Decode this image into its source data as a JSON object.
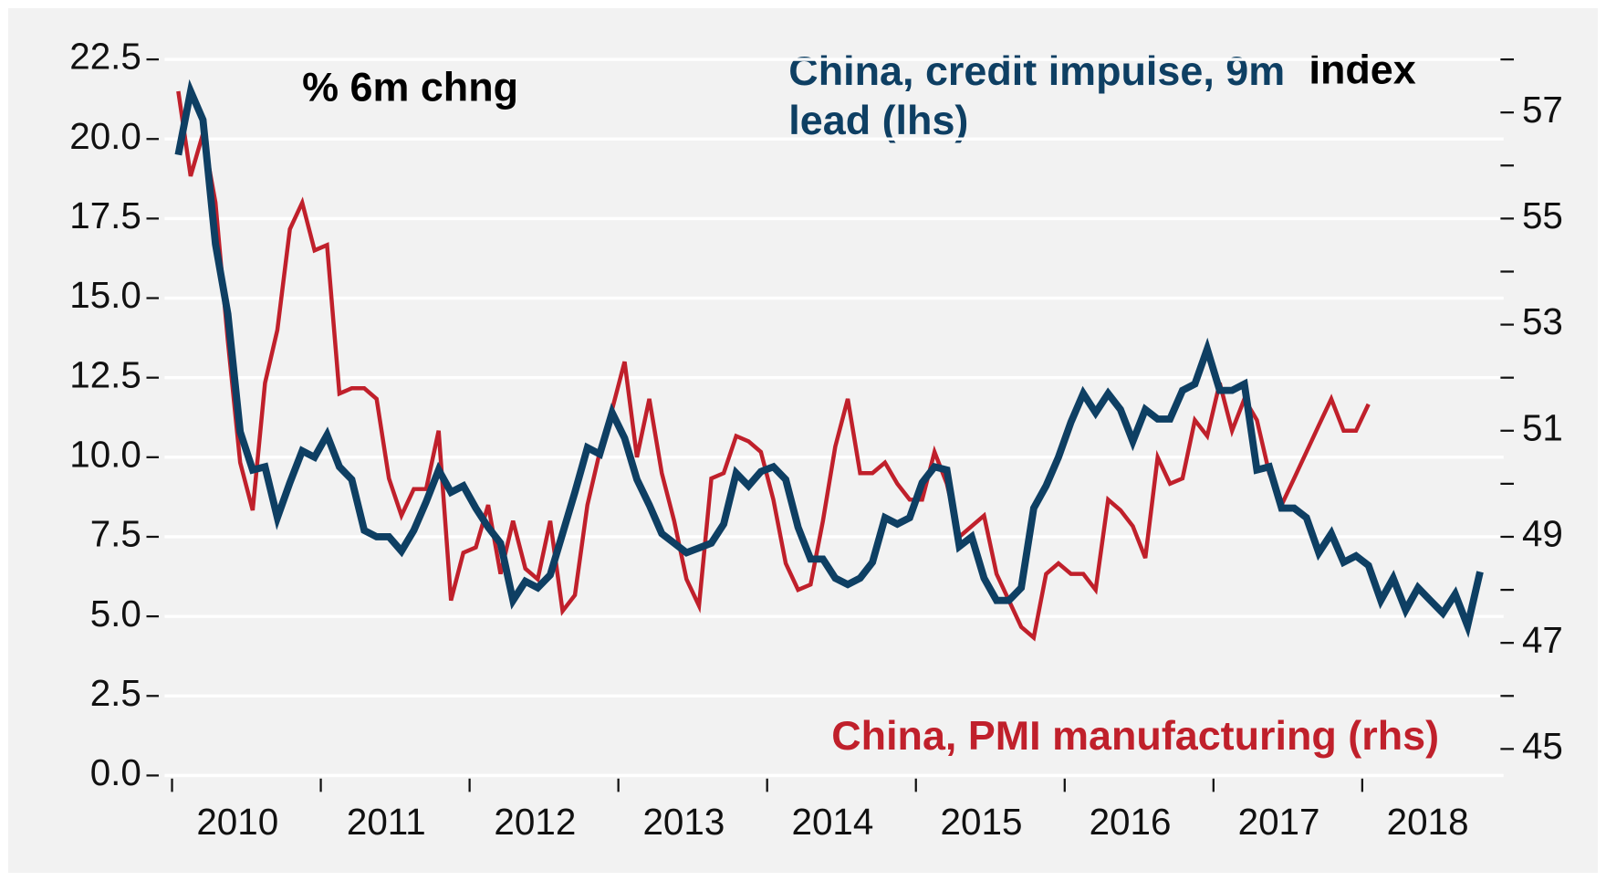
{
  "chart_data": {
    "type": "line",
    "annotations": [
      "% 6m chng",
      "Index"
    ],
    "x": [
      2010.042,
      2010.125,
      2010.208,
      2010.292,
      2010.375,
      2010.458,
      2010.542,
      2010.625,
      2010.708,
      2010.792,
      2010.875,
      2010.958,
      2011.042,
      2011.125,
      2011.208,
      2011.292,
      2011.375,
      2011.458,
      2011.542,
      2011.625,
      2011.708,
      2011.792,
      2011.875,
      2011.958,
      2012.042,
      2012.125,
      2012.208,
      2012.292,
      2012.375,
      2012.458,
      2012.542,
      2012.625,
      2012.708,
      2012.792,
      2012.875,
      2012.958,
      2013.042,
      2013.125,
      2013.208,
      2013.292,
      2013.375,
      2013.458,
      2013.542,
      2013.625,
      2013.708,
      2013.792,
      2013.875,
      2013.958,
      2014.042,
      2014.125,
      2014.208,
      2014.292,
      2014.375,
      2014.458,
      2014.542,
      2014.625,
      2014.708,
      2014.792,
      2014.875,
      2014.958,
      2015.042,
      2015.125,
      2015.208,
      2015.292,
      2015.375,
      2015.458,
      2015.542,
      2015.625,
      2015.708,
      2015.792,
      2015.875,
      2015.958,
      2016.042,
      2016.125,
      2016.208,
      2016.292,
      2016.375,
      2016.458,
      2016.542,
      2016.625,
      2016.708,
      2016.792,
      2016.875,
      2016.958,
      2017.042,
      2017.125,
      2017.208,
      2017.292,
      2017.375,
      2017.458,
      2017.542,
      2017.625,
      2017.708,
      2017.792,
      2017.875,
      2017.958,
      2018.042,
      2018.125,
      2018.208,
      2018.292,
      2018.375,
      2018.458,
      2018.542,
      2018.625,
      2018.708,
      2018.792
    ],
    "series": [
      {
        "name": "China, credit impulse, 9m lead (lhs)",
        "color": "#0e3f63",
        "axis": "y",
        "values": [
          19.5,
          21.5,
          20.6,
          16.7,
          14.5,
          10.8,
          9.6,
          9.7,
          8.1,
          9.2,
          10.2,
          10.0,
          10.7,
          9.7,
          9.3,
          7.7,
          7.5,
          7.5,
          7.05,
          7.7,
          8.6,
          9.6,
          8.9,
          9.1,
          8.4,
          7.8,
          7.3,
          5.5,
          6.1,
          5.9,
          6.3,
          7.6,
          8.9,
          10.3,
          10.1,
          11.4,
          10.6,
          9.3,
          8.5,
          7.6,
          7.3,
          7.0,
          7.15,
          7.3,
          7.9,
          9.5,
          9.1,
          9.55,
          9.7,
          9.3,
          7.8,
          6.8,
          6.8,
          6.2,
          6.0,
          6.2,
          6.7,
          8.1,
          7.9,
          8.1,
          9.2,
          9.7,
          9.6,
          7.2,
          7.5,
          6.2,
          5.5,
          5.5,
          5.9,
          8.4,
          9.1,
          10.0,
          11.1,
          12.0,
          11.4,
          12.0,
          11.5,
          10.5,
          11.5,
          11.2,
          11.2,
          12.1,
          12.3,
          13.4,
          12.1,
          12.1,
          12.3,
          9.6,
          9.7,
          8.4,
          8.4,
          8.1,
          7.0,
          7.6,
          6.7,
          6.9,
          6.6,
          5.5,
          6.2,
          5.2,
          5.9,
          5.5,
          5.1,
          5.7,
          4.7,
          6.4
        ]
      },
      {
        "name": "China, PMI manufacturing (rhs)",
        "color": "#c0202b",
        "axis": "y2",
        "values": [
          57.4,
          55.8,
          56.6,
          55.3,
          52.7,
          50.4,
          49.5,
          51.9,
          52.9,
          54.8,
          55.3,
          54.4,
          54.5,
          51.7,
          51.8,
          51.8,
          51.6,
          50.1,
          49.4,
          49.9,
          49.9,
          51.0,
          47.8,
          48.7,
          48.8,
          49.6,
          48.3,
          49.3,
          48.4,
          48.2,
          49.3,
          47.6,
          47.9,
          49.6,
          50.6,
          51.4,
          52.3,
          50.5,
          51.6,
          50.2,
          49.3,
          48.2,
          47.7,
          50.1,
          50.2,
          50.9,
          50.8,
          50.6,
          49.7,
          48.5,
          48.0,
          48.1,
          49.3,
          50.7,
          51.6,
          50.2,
          50.2,
          50.4,
          50.0,
          49.7,
          49.7,
          50.6,
          50.0,
          49.0,
          49.2,
          49.4,
          48.3,
          47.8,
          47.3,
          47.1,
          48.3,
          48.5,
          48.3,
          48.3,
          48.0,
          49.7,
          49.5,
          49.2,
          48.6,
          50.5,
          50.0,
          50.1,
          51.2,
          50.9,
          51.9,
          51.0,
          51.6,
          51.2,
          50.2,
          49.6,
          50.1,
          50.6,
          51.1,
          51.6,
          51.0,
          51.0,
          51.5,
          null,
          null,
          null,
          null,
          null,
          null,
          null,
          null,
          null
        ]
      }
    ],
    "xlim": [
      2009.95,
      2018.95
    ],
    "xticks": [
      2010,
      2011,
      2012,
      2013,
      2014,
      2015,
      2016,
      2017,
      2018
    ],
    "ylim": [
      0,
      22.5
    ],
    "yticks": [
      {
        "value": 0,
        "label": "0.0"
      },
      {
        "value": 2.5,
        "label": "2.5"
      },
      {
        "value": 5,
        "label": "5.0"
      },
      {
        "value": 7.5,
        "label": "7.5"
      },
      {
        "value": 10,
        "label": "10.0"
      },
      {
        "value": 12.5,
        "label": "12.5"
      },
      {
        "value": 15,
        "label": "15.0"
      },
      {
        "value": 17.5,
        "label": "17.5"
      },
      {
        "value": 20,
        "label": "20.0"
      },
      {
        "value": 22.5,
        "label": "22.5"
      }
    ],
    "y2lim": [
      44.5,
      58
    ],
    "y2ticks": [
      45,
      47,
      49,
      51,
      53,
      55,
      57
    ],
    "y2minor_ticks": [
      46,
      48,
      50,
      52,
      54,
      56,
      58
    ],
    "grid": true
  }
}
